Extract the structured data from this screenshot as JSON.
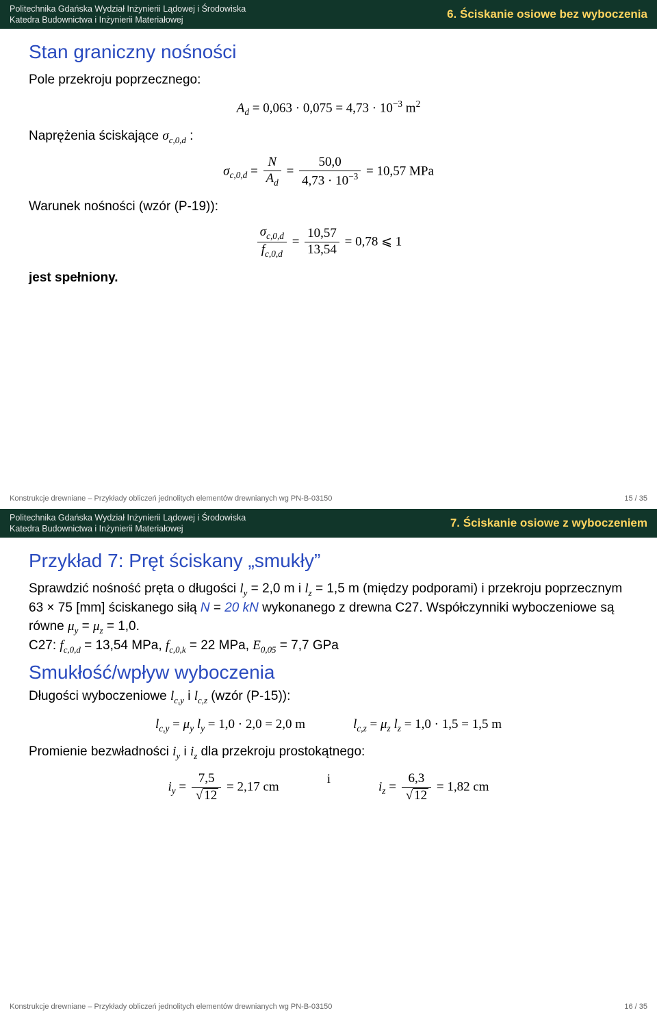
{
  "header": {
    "affil_line1": "Politechnika Gdańska Wydział Inżynierii Lądowej i Środowiska",
    "affil_line2": "Katedra Budownictwa i Inżynierii Materiałowej",
    "section6": "6. Ściskanie osiowe bez wyboczenia",
    "section7": "7. Ściskanie osiowe z wyboczeniem"
  },
  "slide15": {
    "title": "Stan graniczny nośności",
    "p1": "Pole przekroju poprzecznego:",
    "p2_prefix": "Naprężenia ściskające ",
    "p3": "Warunek nośności (wzór (P-19)):",
    "p4": "jest spełniony."
  },
  "slide16": {
    "title": "Przykład 7: Pręt ściskany „smukły”",
    "body_prefix": "Sprawdzić nośność pręta o długości ",
    "body_mid1": " (między podporami) i przekroju poprzecznym 63 × 75 [mm] ściskanego siłą ",
    "body_mid2": " wykonanego z drewna C27. Współczynniki wyboczeniowe są równe ",
    "c27": "C27: ",
    "subtitle": "Smukłość/wpływ wyboczenia",
    "p1_prefix": "Długości wyboczeniowe ",
    "p1_suffix": " (wzór (P-15)):",
    "p2_prefix": "Promienie bezwładności ",
    "p2_suffix": " dla przekroju prostokątnego:"
  },
  "values": {
    "Ad_calc": "0,063 · 0,075 = 4,73 · 10",
    "Ad_exp": "−3",
    "Ad_unit": " m",
    "sigma_num": "50,0",
    "sigma_den": "4,73 · 10",
    "sigma_den_exp": "−3",
    "sigma_result": "10,57 MPa",
    "ratio_num": "10,57",
    "ratio_den": "13,54",
    "ratio_result": "0,78 ⩽ 1",
    "ly": "2,0 m",
    "lz": "1,5 m",
    "N_val": "20 kN",
    "mu_val": "1,0.",
    "fc0d": "13,54 MPa",
    "fc0k": "22 MPa",
    "E005": "7,7 GPa",
    "lcy_calc": "1,0 · 2,0 = 2,0 m",
    "lcz_calc": "1,0 · 1,5 = 1,5 m",
    "iy_num": "7,5",
    "iz_num": "6,3",
    "root12": "12",
    "iy_result": "2,17 cm",
    "iz_result": "1,82 cm"
  },
  "footer": {
    "text": "Konstrukcje drewniane – Przykłady obliczeń jednolitych elementów drewnianych wg PN-B-03150",
    "page15": "15 / 35",
    "page16": "16 / 35"
  },
  "colors": {
    "header_bg": "#11362a",
    "header_right": "#ffd560",
    "title": "#2a4bbf",
    "accent": "#2a4bbf"
  }
}
